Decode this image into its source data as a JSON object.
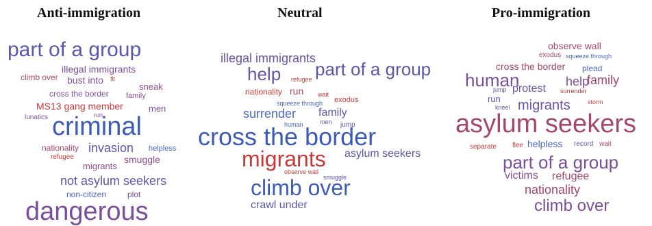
{
  "colors": {
    "blue": "#3d5cb8",
    "purple": "#7a4f9c",
    "violet": "#5d57ab",
    "red": "#c83a3a",
    "rose": "#a4486e"
  },
  "clouds": {
    "anti": {
      "title": "Anti-immigration",
      "words": [
        {
          "text": "part of a group",
          "color": "#5a56ab"
        },
        {
          "text": "illegal immigrants",
          "color": "#7a4f9c"
        },
        {
          "text": "climb over",
          "color": "#a4486e"
        },
        {
          "text": "bust into",
          "color": "#7a4f9c"
        },
        {
          "text": "fit",
          "color": "#c83a3a"
        },
        {
          "text": "sneak",
          "color": "#8a4c8c"
        },
        {
          "text": "cross the border",
          "color": "#7a4f9c"
        },
        {
          "text": "family",
          "color": "#8a4c8c"
        },
        {
          "text": "MS13 gang member",
          "color": "#c83a3a"
        },
        {
          "text": "men",
          "color": "#7a4f9c"
        },
        {
          "text": "lunatics",
          "color": "#7a4f9c"
        },
        {
          "text": "run",
          "color": "#8a4c8c"
        },
        {
          "text": "criminal",
          "color": "#3d5cb8"
        },
        {
          "text": "nationality",
          "color": "#a4486e"
        },
        {
          "text": "invasion",
          "color": "#5d57ab"
        },
        {
          "text": "helpless",
          "color": "#4a66c0"
        },
        {
          "text": "refugee",
          "color": "#c83a3a"
        },
        {
          "text": "smuggle",
          "color": "#8a4c8c"
        },
        {
          "text": "migrants",
          "color": "#8a4c8c"
        },
        {
          "text": "not asylum seekers",
          "color": "#5d57ab"
        },
        {
          "text": "non-citizen",
          "color": "#4a66c0"
        },
        {
          "text": "plot",
          "color": "#7a4f9c"
        },
        {
          "text": "dangerous",
          "color": "#7a4f9c"
        }
      ]
    },
    "neutral": {
      "title": "Neutral",
      "words": [
        {
          "text": "illegal immigrants",
          "color": "#6a52a4"
        },
        {
          "text": "help",
          "color": "#6a52a4"
        },
        {
          "text": "refugee",
          "color": "#c83a3a"
        },
        {
          "text": "part of a group",
          "color": "#5d57ab"
        },
        {
          "text": "nationality",
          "color": "#c83a3a"
        },
        {
          "text": "run",
          "color": "#a4486e"
        },
        {
          "text": "wait",
          "color": "#c83a3a"
        },
        {
          "text": "exodus",
          "color": "#c83a3a"
        },
        {
          "text": "squeeze through",
          "color": "#4a66c0"
        },
        {
          "text": "surrender",
          "color": "#4a66c0"
        },
        {
          "text": "family",
          "color": "#5d57ab"
        },
        {
          "text": "human",
          "color": "#4a66c0"
        },
        {
          "text": "men",
          "color": "#5d57ab"
        },
        {
          "text": "jump",
          "color": "#5d57ab"
        },
        {
          "text": "cross the border",
          "color": "#3d5cb8"
        },
        {
          "text": "migrants",
          "color": "#c83a3a"
        },
        {
          "text": "asylum seekers",
          "color": "#5d57ab"
        },
        {
          "text": "observe wall",
          "color": "#c83a3a"
        },
        {
          "text": "smuggle",
          "color": "#5d57ab"
        },
        {
          "text": "climb over",
          "color": "#3d5cb8"
        },
        {
          "text": "crawl under",
          "color": "#5d57ab"
        }
      ]
    },
    "pro": {
      "title": "Pro-immigration",
      "words": [
        {
          "text": "observe wall",
          "color": "#a4486e"
        },
        {
          "text": "exodus",
          "color": "#a4486e"
        },
        {
          "text": "squeeze through",
          "color": "#4a66c0"
        },
        {
          "text": "cross the border",
          "color": "#a4486e"
        },
        {
          "text": "plead",
          "color": "#4a66c0"
        },
        {
          "text": "human",
          "color": "#7a4f9c"
        },
        {
          "text": "help",
          "color": "#7a4f9c"
        },
        {
          "text": "family",
          "color": "#a4486e"
        },
        {
          "text": "jump",
          "color": "#5d57ab"
        },
        {
          "text": "protest",
          "color": "#6a52a4"
        },
        {
          "text": "surrender",
          "color": "#c83a3a"
        },
        {
          "text": "run",
          "color": "#5d57ab"
        },
        {
          "text": "storm",
          "color": "#c83a3a"
        },
        {
          "text": "kneel",
          "color": "#5d57ab"
        },
        {
          "text": "migrants",
          "color": "#6a52a4"
        },
        {
          "text": "asylum seekers",
          "color": "#a4486e"
        },
        {
          "text": "separate",
          "color": "#c83a3a"
        },
        {
          "text": "flee",
          "color": "#c83a3a"
        },
        {
          "text": "helpless",
          "color": "#4a66c0"
        },
        {
          "text": "record",
          "color": "#5d57ab"
        },
        {
          "text": "wait",
          "color": "#a4486e"
        },
        {
          "text": "part of a group",
          "color": "#7a4f9c"
        },
        {
          "text": "victims",
          "color": "#8a4c8c"
        },
        {
          "text": "refugee",
          "color": "#a4486e"
        },
        {
          "text": "nationality",
          "color": "#a4486e"
        },
        {
          "text": "climb over",
          "color": "#7a4f9c"
        }
      ]
    }
  }
}
